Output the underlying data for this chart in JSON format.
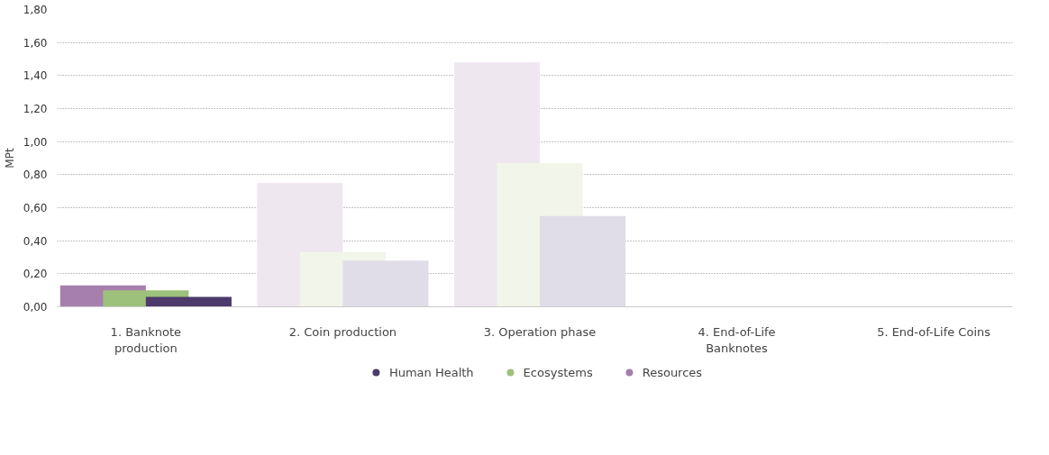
{
  "chart_data": {
    "type": "bar",
    "ylabel": "MPt",
    "categories": [
      "1. Banknote production",
      "2. Coin production",
      "3. Operation phase",
      "4. End-of-Life Banknotes",
      "5. End-of-Life Coins"
    ],
    "series": [
      {
        "name": "Resources",
        "color": "#a77fae",
        "colors": [
          "#a77fae",
          "#efe7f0",
          "#efe7f0",
          "#efe7f0",
          "#efe7f0"
        ],
        "values": [
          0.13,
          0.75,
          1.48,
          0,
          0
        ]
      },
      {
        "name": "Ecosystems",
        "color": "#9dc07a",
        "colors": [
          "#9dc07a",
          "#f1f5ea",
          "#f1f5ea",
          "#f1f5ea",
          "#f1f5ea"
        ],
        "values": [
          0.1,
          0.33,
          0.87,
          0,
          0
        ]
      },
      {
        "name": "Human Health",
        "color": "#4b3a6b",
        "colors": [
          "#4b3a6b",
          "#e0dde8",
          "#e0dde8",
          "#e0dde8",
          "#e0dde8"
        ],
        "values": [
          0.06,
          0.28,
          0.55,
          0,
          0
        ]
      }
    ],
    "ylim": [
      0,
      1.8
    ],
    "yticks": [
      {
        "value": 0,
        "label": "0,00"
      },
      {
        "value": 0.2,
        "label": "0,20"
      },
      {
        "value": 0.4,
        "label": "0,40"
      },
      {
        "value": 0.6,
        "label": "0,60"
      },
      {
        "value": 0.8,
        "label": "0,80"
      },
      {
        "value": 1.0,
        "label": "1,00"
      },
      {
        "value": 1.2,
        "label": "1,20"
      },
      {
        "value": 1.4,
        "label": "1,40"
      },
      {
        "value": 1.6,
        "label": "1,60"
      },
      {
        "value": 1.8,
        "label": "1,80"
      }
    ],
    "grid": "y",
    "legend": "bottom"
  }
}
